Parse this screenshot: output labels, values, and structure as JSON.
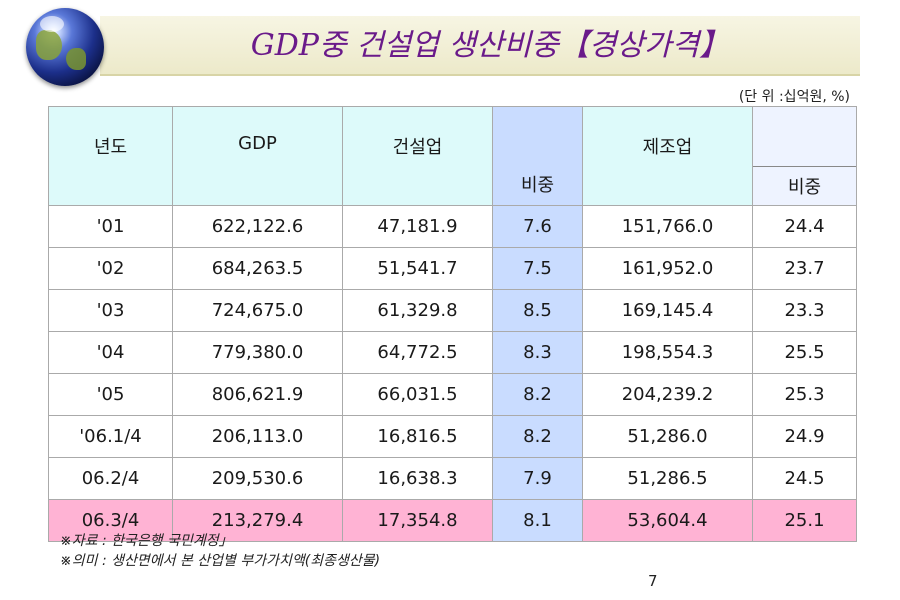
{
  "title": "GDP중 건설업 생산비중【경상가격】",
  "unit": "(단 위 :십억원, %)",
  "table": {
    "headers": {
      "year": "년도",
      "gdp": "GDP",
      "construction": "건설업",
      "construction_ratio": "비중",
      "manufacturing": "제조업",
      "manufacturing_ratio": "비중"
    },
    "rows": [
      {
        "year": "'01",
        "gdp": "622,122.6",
        "construction": "47,181.9",
        "c_ratio": "7.6",
        "manufacturing": "151,766.0",
        "m_ratio": "24.4"
      },
      {
        "year": "'02",
        "gdp": "684,263.5",
        "construction": "51,541.7",
        "c_ratio": "7.5",
        "manufacturing": "161,952.0",
        "m_ratio": "23.7"
      },
      {
        "year": "'03",
        "gdp": "724,675.0",
        "construction": "61,329.8",
        "c_ratio": "8.5",
        "manufacturing": "169,145.4",
        "m_ratio": "23.3"
      },
      {
        "year": "'04",
        "gdp": "779,380.0",
        "construction": "64,772.5",
        "c_ratio": "8.3",
        "manufacturing": "198,554.3",
        "m_ratio": "25.5"
      },
      {
        "year": "'05",
        "gdp": "806,621.9",
        "construction": "66,031.5",
        "c_ratio": "8.2",
        "manufacturing": "204,239.2",
        "m_ratio": "25.3"
      },
      {
        "year": "'06.1/4",
        "gdp": "206,113.0",
        "construction": "16,816.5",
        "c_ratio": "8.2",
        "manufacturing": "51,286.0",
        "m_ratio": "24.9"
      },
      {
        "year": "06.2/4",
        "gdp": "209,530.6",
        "construction": "16,638.3",
        "c_ratio": "7.9",
        "manufacturing": "51,286.5",
        "m_ratio": "24.5"
      },
      {
        "year": "06.3/4",
        "gdp": "213,279.4",
        "construction": "17,354.8",
        "c_ratio": "8.1",
        "manufacturing": "53,604.4",
        "m_ratio": "25.1"
      }
    ]
  },
  "notes": {
    "source": "※자료 : 한국은행 국민계정」",
    "meaning": "※의미 : 생산면에서 본 산업별 부가가치액(최종생산물)"
  },
  "page_number": "7",
  "colors": {
    "title": "#6a1a8a",
    "header_bg": "#ddfafa",
    "ratio_bg": "#c9dcff",
    "highlight_row": "#ffb3d4"
  }
}
